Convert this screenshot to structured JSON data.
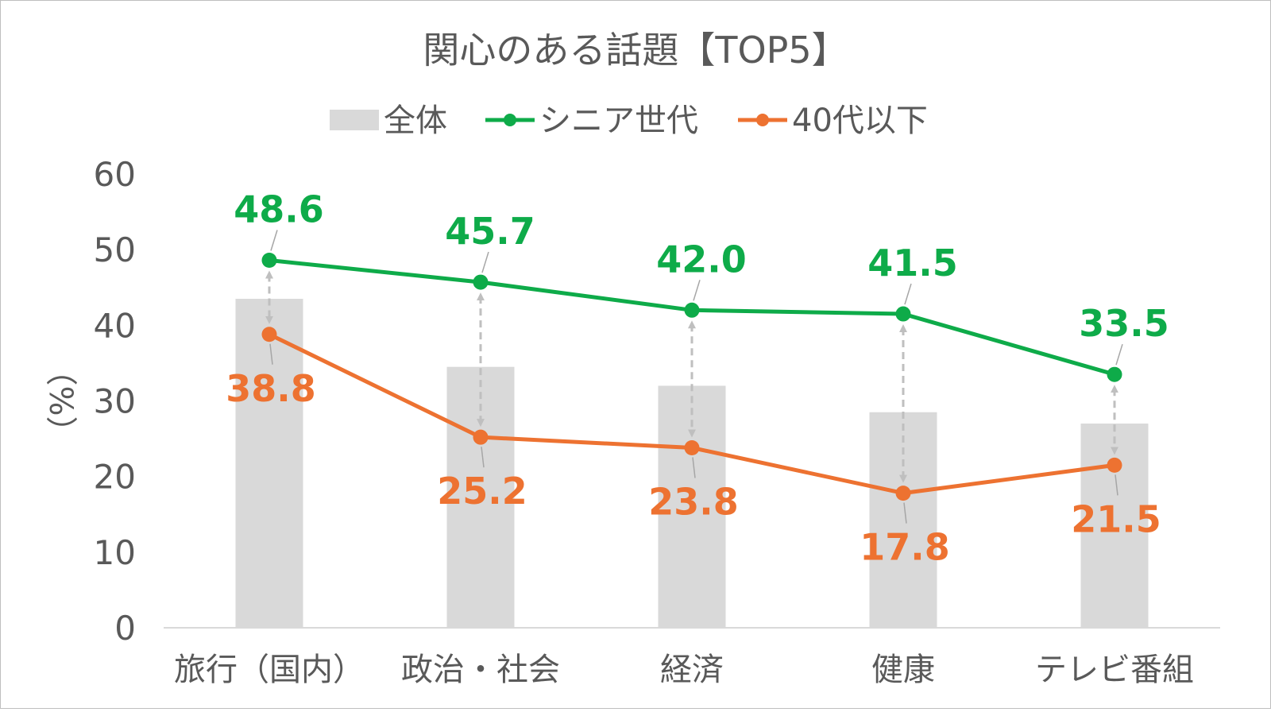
{
  "chart_data": {
    "type": "bar",
    "title": "関心のある話題【TOP5】",
    "ylabel": "（%）",
    "xlabel": "",
    "ylim": [
      0,
      60
    ],
    "yticks": [
      0,
      10,
      20,
      30,
      40,
      50,
      60
    ],
    "categories": [
      "旅行（国内）",
      "政治・社会",
      "経済",
      "健康",
      "テレビ番組"
    ],
    "legend_position": "top",
    "grid": false,
    "series": [
      {
        "name": "全体",
        "type": "bar",
        "color": "#d9d9d9",
        "values": [
          43.5,
          34.5,
          32.0,
          28.5,
          27.0
        ]
      },
      {
        "name": "シニア世代",
        "type": "line",
        "color": "#0eab49",
        "values": [
          48.6,
          45.7,
          42.0,
          41.5,
          33.5
        ],
        "labels": [
          "48.6",
          "45.7",
          "42.0",
          "41.5",
          "33.5"
        ]
      },
      {
        "name": "40代以下",
        "type": "line",
        "color": "#ed7231",
        "values": [
          38.8,
          25.2,
          23.8,
          17.8,
          21.5
        ],
        "labels": [
          "38.8",
          "25.2",
          "23.8",
          "17.8",
          "21.5"
        ]
      }
    ],
    "annotations": "dashed double-headed arrows between the two lines at each category"
  }
}
